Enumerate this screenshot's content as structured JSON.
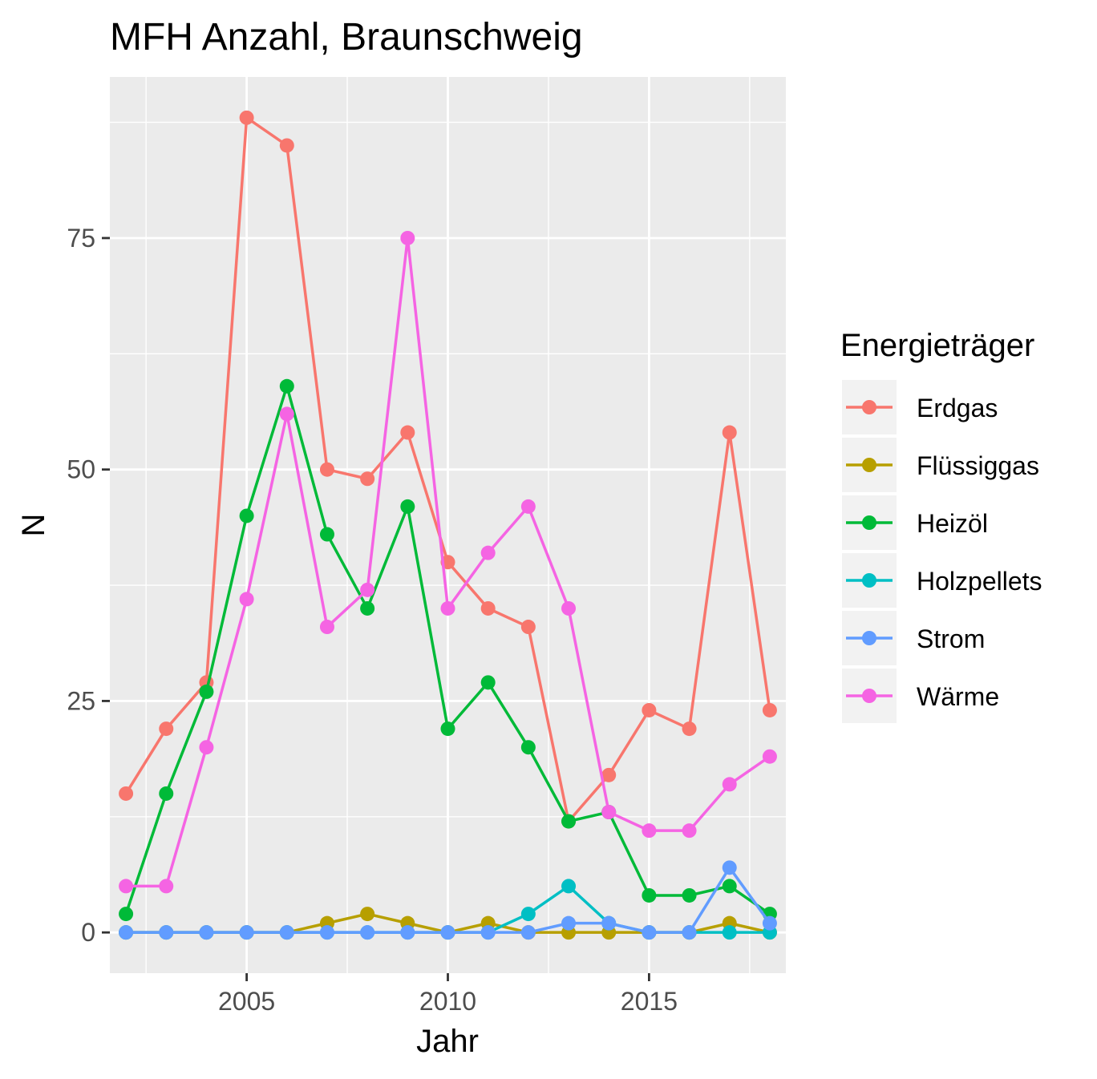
{
  "chart_data": {
    "type": "line",
    "title": "MFH Anzahl, Braunschweig",
    "xlabel": "Jahr",
    "ylabel": "N",
    "xlim": [
      2001.6,
      2018.4
    ],
    "ylim": [
      -4.4,
      92.4
    ],
    "x_ticks": [
      2005,
      2010,
      2015
    ],
    "x_tick_labels": [
      "2005",
      "2010",
      "2015"
    ],
    "x_minor_ticks": [
      2002.5,
      2007.5,
      2012.5,
      2017.5
    ],
    "y_ticks": [
      0,
      25,
      50,
      75
    ],
    "y_tick_labels": [
      "0",
      "25",
      "50",
      "75"
    ],
    "y_minor_ticks": [
      12.5,
      37.5,
      62.5,
      87.5
    ],
    "grid": true,
    "legend_title": "Energieträger",
    "legend_position": "right",
    "x": [
      2002,
      2003,
      2004,
      2005,
      2006,
      2007,
      2008,
      2009,
      2010,
      2011,
      2012,
      2013,
      2014,
      2015,
      2016,
      2017,
      2018
    ],
    "series": [
      {
        "name": "Erdgas",
        "color": "#F8766D",
        "values": [
          15,
          22,
          27,
          88,
          85,
          50,
          49,
          54,
          40,
          35,
          33,
          12,
          17,
          24,
          22,
          54,
          24
        ]
      },
      {
        "name": "Flüssiggas",
        "color": "#B79F00",
        "values": [
          0,
          0,
          0,
          0,
          0,
          1,
          2,
          1,
          0,
          1,
          0,
          0,
          0,
          0,
          0,
          1,
          0
        ]
      },
      {
        "name": "Heizöl",
        "color": "#00BA38",
        "values": [
          2,
          15,
          26,
          45,
          59,
          43,
          35,
          46,
          22,
          27,
          20,
          12,
          13,
          4,
          4,
          5,
          2
        ]
      },
      {
        "name": "Holzpellets",
        "color": "#00BFC4",
        "values": [
          0,
          0,
          0,
          0,
          0,
          0,
          0,
          0,
          0,
          0,
          2,
          5,
          1,
          0,
          0,
          0,
          0
        ]
      },
      {
        "name": "Strom",
        "color": "#619CFF",
        "values": [
          0,
          0,
          0,
          0,
          0,
          0,
          0,
          0,
          0,
          0,
          0,
          1,
          1,
          0,
          0,
          7,
          1
        ]
      },
      {
        "name": "Wärme",
        "color": "#F564E3",
        "values": [
          5,
          5,
          20,
          36,
          56,
          33,
          37,
          75,
          35,
          41,
          46,
          35,
          13,
          11,
          11,
          16,
          19
        ]
      }
    ]
  }
}
